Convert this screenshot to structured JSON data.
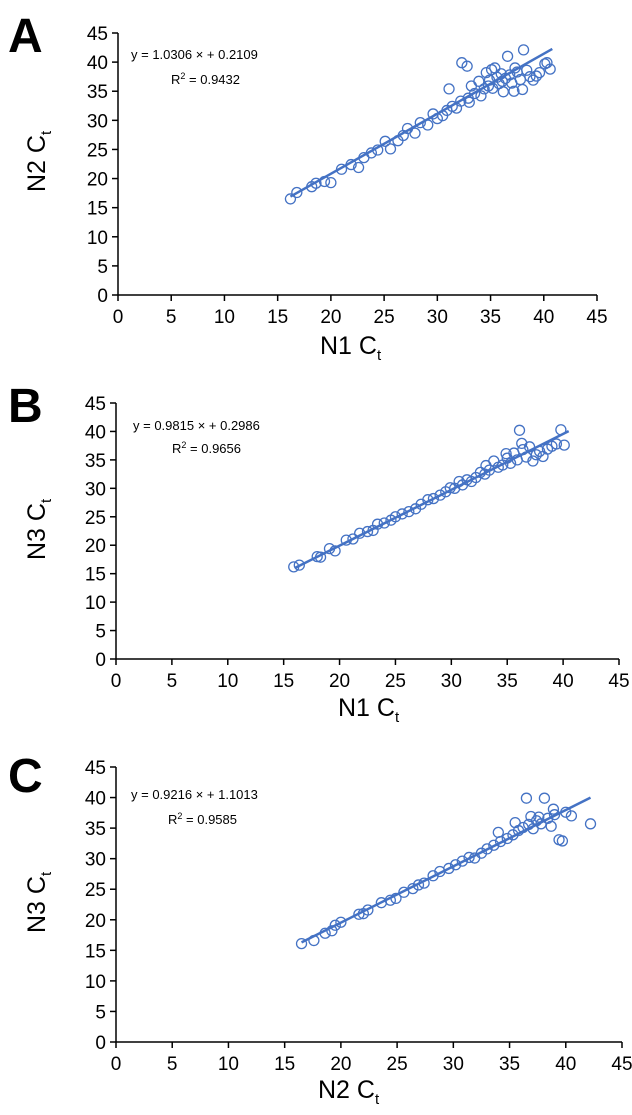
{
  "chart_data": [
    {
      "type": "scatter",
      "panel_label": "A",
      "xlabel": "N1 C",
      "xlabel_sub": "t",
      "ylabel": "N2 C",
      "ylabel_sub": "t",
      "xlim": [
        0,
        45
      ],
      "ylim": [
        0,
        45
      ],
      "xticks": [
        "0",
        "5",
        "10",
        "15",
        "20",
        "25",
        "30",
        "35",
        "40",
        "45"
      ],
      "yticks": [
        "0",
        "5",
        "10",
        "15",
        "20",
        "25",
        "30",
        "35",
        "40",
        "45"
      ],
      "equation": "y = 1.0306 × + 0.2109",
      "r2_label": "R",
      "r2_value": " = 0.9432",
      "fit": {
        "slope": 1.0306,
        "intercept": 0.2109,
        "x_range": [
          16.2,
          40.8
        ]
      },
      "points": [
        [
          16.2,
          16.5
        ],
        [
          16.8,
          17.6
        ],
        [
          18.2,
          18.6
        ],
        [
          18.6,
          19.2
        ],
        [
          19.4,
          19.5
        ],
        [
          20.0,
          19.3
        ],
        [
          21.0,
          21.6
        ],
        [
          21.9,
          22.4
        ],
        [
          22.6,
          21.9
        ],
        [
          23.1,
          23.6
        ],
        [
          23.8,
          24.4
        ],
        [
          24.4,
          24.9
        ],
        [
          25.1,
          26.4
        ],
        [
          25.6,
          25.1
        ],
        [
          26.3,
          26.5
        ],
        [
          26.8,
          27.4
        ],
        [
          27.2,
          28.6
        ],
        [
          27.9,
          27.8
        ],
        [
          28.4,
          29.6
        ],
        [
          29.1,
          29.2
        ],
        [
          29.6,
          31.1
        ],
        [
          30.0,
          30.3
        ],
        [
          30.5,
          30.8
        ],
        [
          30.9,
          31.7
        ],
        [
          31.1,
          35.4
        ],
        [
          31.4,
          32.4
        ],
        [
          31.8,
          32.1
        ],
        [
          32.2,
          33.3
        ],
        [
          32.3,
          39.9
        ],
        [
          32.8,
          39.3
        ],
        [
          32.9,
          33.8
        ],
        [
          33.2,
          35.9
        ],
        [
          33.5,
          34.6
        ],
        [
          33.9,
          36.7
        ],
        [
          34.1,
          34.2
        ],
        [
          34.4,
          35.4
        ],
        [
          34.6,
          38.2
        ],
        [
          34.9,
          36.9
        ],
        [
          35.1,
          38.7
        ],
        [
          35.2,
          35.5
        ],
        [
          35.4,
          39.0
        ],
        [
          35.6,
          37.4
        ],
        [
          35.8,
          36.3
        ],
        [
          36.0,
          38.0
        ],
        [
          36.2,
          34.9
        ],
        [
          36.4,
          37.2
        ],
        [
          36.6,
          41.0
        ],
        [
          36.8,
          37.8
        ],
        [
          37.0,
          36.4
        ],
        [
          37.3,
          39.0
        ],
        [
          37.5,
          38.3
        ],
        [
          37.8,
          37.0
        ],
        [
          38.1,
          42.1
        ],
        [
          38.4,
          38.6
        ],
        [
          38.7,
          37.5
        ],
        [
          39.0,
          36.9
        ],
        [
          39.3,
          37.6
        ],
        [
          39.6,
          38.2
        ],
        [
          40.1,
          39.7
        ],
        [
          40.6,
          38.8
        ],
        [
          40.3,
          39.9
        ],
        [
          33.0,
          33.1
        ],
        [
          34.8,
          35.9
        ],
        [
          36.1,
          36.7
        ],
        [
          37.2,
          35.0
        ],
        [
          38.0,
          35.3
        ]
      ]
    },
    {
      "type": "scatter",
      "panel_label": "B",
      "xlabel": "N1 C",
      "xlabel_sub": "t",
      "ylabel": "N3 C",
      "ylabel_sub": "t",
      "xlim": [
        0,
        45
      ],
      "ylim": [
        0,
        45
      ],
      "xticks": [
        "0",
        "5",
        "10",
        "15",
        "20",
        "25",
        "30",
        "35",
        "40",
        "45"
      ],
      "yticks": [
        "0",
        "5",
        "10",
        "15",
        "20",
        "25",
        "30",
        "35",
        "40",
        "45"
      ],
      "equation": "y = 0.9815 × + 0.2986",
      "r2_label": "R",
      "r2_value": " = 0.9656",
      "fit": {
        "slope": 0.9815,
        "intercept": 0.2986,
        "x_range": [
          16.0,
          40.5
        ]
      },
      "points": [
        [
          15.9,
          16.2
        ],
        [
          16.4,
          16.5
        ],
        [
          18.0,
          18.0
        ],
        [
          18.3,
          17.9
        ],
        [
          19.1,
          19.4
        ],
        [
          19.6,
          19.0
        ],
        [
          20.6,
          20.9
        ],
        [
          21.2,
          21.1
        ],
        [
          21.8,
          22.1
        ],
        [
          22.5,
          22.4
        ],
        [
          23.0,
          22.6
        ],
        [
          23.4,
          23.7
        ],
        [
          24.0,
          23.9
        ],
        [
          24.6,
          24.4
        ],
        [
          25.0,
          25.0
        ],
        [
          25.6,
          25.5
        ],
        [
          26.2,
          25.9
        ],
        [
          26.8,
          26.4
        ],
        [
          27.3,
          27.2
        ],
        [
          27.9,
          28.0
        ],
        [
          28.4,
          28.2
        ],
        [
          29.0,
          28.8
        ],
        [
          29.5,
          29.4
        ],
        [
          29.9,
          30.1
        ],
        [
          30.3,
          30.0
        ],
        [
          30.7,
          31.2
        ],
        [
          31.0,
          30.6
        ],
        [
          31.4,
          31.5
        ],
        [
          31.8,
          31.2
        ],
        [
          32.2,
          31.9
        ],
        [
          32.6,
          32.8
        ],
        [
          33.0,
          32.5
        ],
        [
          33.4,
          33.2
        ],
        [
          33.8,
          34.8
        ],
        [
          34.2,
          33.7
        ],
        [
          34.6,
          34.1
        ],
        [
          35.0,
          35.3
        ],
        [
          35.3,
          34.4
        ],
        [
          35.6,
          36.2
        ],
        [
          35.9,
          35.0
        ],
        [
          36.1,
          40.2
        ],
        [
          36.4,
          36.8
        ],
        [
          36.7,
          35.5
        ],
        [
          37.0,
          37.3
        ],
        [
          37.3,
          34.8
        ],
        [
          37.6,
          35.9
        ],
        [
          37.9,
          36.5
        ],
        [
          38.2,
          35.6
        ],
        [
          38.6,
          36.9
        ],
        [
          39.0,
          37.4
        ],
        [
          39.4,
          37.8
        ],
        [
          39.8,
          40.3
        ],
        [
          40.1,
          37.6
        ],
        [
          33.1,
          34.0
        ],
        [
          34.9,
          36.1
        ],
        [
          36.3,
          37.9
        ]
      ]
    },
    {
      "type": "scatter",
      "panel_label": "C",
      "xlabel": "N2 C",
      "xlabel_sub": "t",
      "ylabel": "N3 C",
      "ylabel_sub": "t",
      "xlim": [
        0,
        45
      ],
      "ylim": [
        0,
        45
      ],
      "xticks": [
        "0",
        "5",
        "10",
        "15",
        "20",
        "25",
        "30",
        "35",
        "40",
        "45"
      ],
      "yticks": [
        "0",
        "5",
        "10",
        "15",
        "20",
        "25",
        "30",
        "35",
        "40",
        "45"
      ],
      "equation": "y = 0.9216 × + 1.1013",
      "r2_label": "R",
      "r2_value": " = 0.9585",
      "fit": {
        "slope": 0.9216,
        "intercept": 1.1013,
        "x_range": [
          16.5,
          42.2
        ]
      },
      "points": [
        [
          16.5,
          16.1
        ],
        [
          17.6,
          16.6
        ],
        [
          18.6,
          17.8
        ],
        [
          19.2,
          18.2
        ],
        [
          19.5,
          19.1
        ],
        [
          20.0,
          19.6
        ],
        [
          21.6,
          20.9
        ],
        [
          22.4,
          21.6
        ],
        [
          22.0,
          21.0
        ],
        [
          23.6,
          22.8
        ],
        [
          24.4,
          23.2
        ],
        [
          24.9,
          23.5
        ],
        [
          25.6,
          24.5
        ],
        [
          26.4,
          25.1
        ],
        [
          26.9,
          25.7
        ],
        [
          27.4,
          26.0
        ],
        [
          28.2,
          27.2
        ],
        [
          28.8,
          27.9
        ],
        [
          29.6,
          28.4
        ],
        [
          30.2,
          29.0
        ],
        [
          30.8,
          29.6
        ],
        [
          31.4,
          30.2
        ],
        [
          31.9,
          30.1
        ],
        [
          32.5,
          30.9
        ],
        [
          33.0,
          31.6
        ],
        [
          33.6,
          32.2
        ],
        [
          34.2,
          32.8
        ],
        [
          34.8,
          33.3
        ],
        [
          35.3,
          33.9
        ],
        [
          35.8,
          34.6
        ],
        [
          36.2,
          35.1
        ],
        [
          36.5,
          39.9
        ],
        [
          36.7,
          35.6
        ],
        [
          37.1,
          34.9
        ],
        [
          37.4,
          36.2
        ],
        [
          37.8,
          35.7
        ],
        [
          38.1,
          39.9
        ],
        [
          38.4,
          36.6
        ],
        [
          38.7,
          35.3
        ],
        [
          39.0,
          37.2
        ],
        [
          39.4,
          33.1
        ],
        [
          39.7,
          32.9
        ],
        [
          40.0,
          37.6
        ],
        [
          40.5,
          37.0
        ],
        [
          42.2,
          35.7
        ],
        [
          35.5,
          35.9
        ],
        [
          36.9,
          36.9
        ],
        [
          38.9,
          38.1
        ],
        [
          34.0,
          34.3
        ],
        [
          37.6,
          36.8
        ]
      ]
    }
  ]
}
